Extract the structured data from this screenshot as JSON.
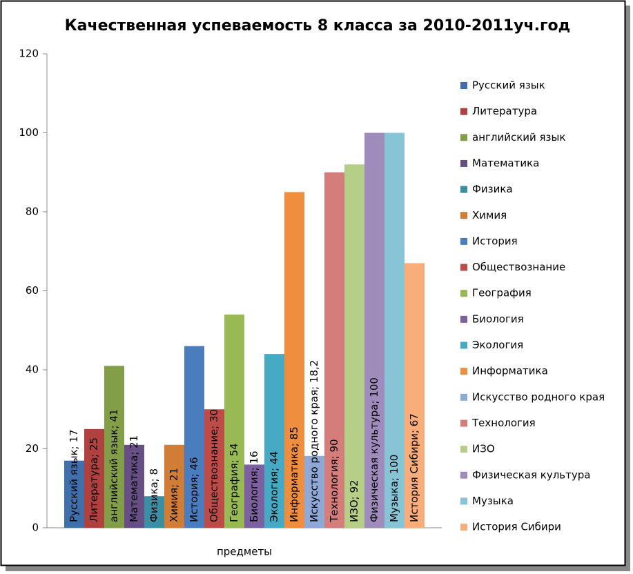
{
  "chart_data": {
    "type": "bar",
    "title": "Качественная успеваемость 8 класса за 2010-2011уч.год",
    "categories": [
      "предметы"
    ],
    "ylim": [
      0,
      120
    ],
    "yticks": [
      0,
      20,
      40,
      60,
      80,
      100,
      120
    ],
    "grid": false,
    "legend": "right",
    "series": [
      {
        "name": "Русский язык",
        "color": "#4070ac",
        "values": [
          17
        ],
        "value_labels": [
          "Русский язык; 17"
        ]
      },
      {
        "name": "Литература",
        "color": "#b0413e",
        "values": [
          25
        ],
        "value_labels": [
          "Литература; 25"
        ]
      },
      {
        "name": "английский язык",
        "color": "#829f47",
        "values": [
          41
        ],
        "value_labels": [
          "английский язык; 41"
        ]
      },
      {
        "name": "Математика",
        "color": "#674f86",
        "values": [
          21
        ],
        "value_labels": [
          "Математика; 21"
        ]
      },
      {
        "name": "Физика",
        "color": "#3a8fa5",
        "values": [
          8
        ],
        "value_labels": [
          "Физика; 8"
        ]
      },
      {
        "name": "Химия",
        "color": "#d27d35",
        "values": [
          21
        ],
        "value_labels": [
          "Химия; 21"
        ]
      },
      {
        "name": "История",
        "color": "#4a7dbe",
        "values": [
          46
        ],
        "value_labels": [
          "История; 46"
        ]
      },
      {
        "name": "Обществознание",
        "color": "#be4b48",
        "values": [
          30
        ],
        "value_labels": [
          "Обществознание; 30"
        ]
      },
      {
        "name": "География",
        "color": "#98b954",
        "values": [
          54
        ],
        "value_labels": [
          "География; 54"
        ]
      },
      {
        "name": "Биология",
        "color": "#7d60a0",
        "values": [
          16
        ],
        "value_labels": [
          "Биология; 16"
        ]
      },
      {
        "name": "Экология",
        "color": "#46aac5",
        "values": [
          44
        ],
        "value_labels": [
          "Экология; 44"
        ]
      },
      {
        "name": "Информатика",
        "color": "#f08e3f",
        "values": [
          85
        ],
        "value_labels": [
          "Информатика; 85"
        ]
      },
      {
        "name": "Искусство родного края",
        "color": "#8fa9d6",
        "values": [
          18.2
        ],
        "value_labels": [
          "Искусство родного края; 18,2"
        ]
      },
      {
        "name": "Технология",
        "color": "#d47d7b",
        "values": [
          90
        ],
        "value_labels": [
          "Технология; 90"
        ]
      },
      {
        "name": "ИЗО",
        "color": "#b5cf86",
        "values": [
          92
        ],
        "value_labels": [
          "ИЗО; 92"
        ]
      },
      {
        "name": "Физическая культура",
        "color": "#a08cbc",
        "values": [
          100
        ],
        "value_labels": [
          "Физическая культура; 100"
        ]
      },
      {
        "name": "Музыка",
        "color": "#87c4d6",
        "values": [
          100
        ],
        "value_labels": [
          "Музыка; 100"
        ]
      },
      {
        "name": "История Сибири",
        "color": "#f9ad7a",
        "values": [
          67
        ],
        "value_labels": [
          "История Сибири; 67"
        ]
      }
    ]
  }
}
